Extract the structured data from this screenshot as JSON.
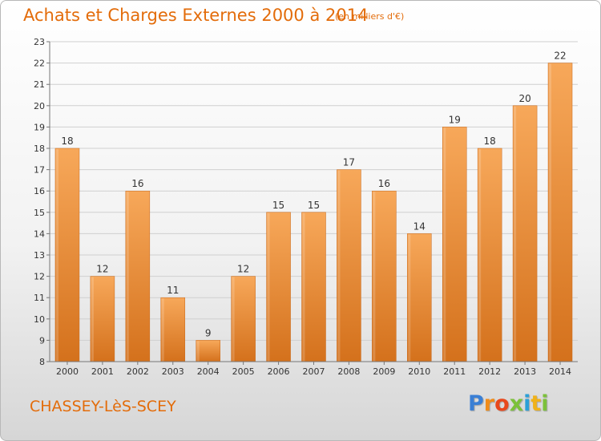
{
  "title": "Achats et Charges Externes 2000 à 2014",
  "subtitle": "(en milliers d'€)",
  "location": "CHASSEY-LèS-SCEY",
  "logo": {
    "letters": [
      "P",
      "r",
      "o",
      "x",
      "i",
      "t",
      "i"
    ],
    "colors": [
      "#3a7fd5",
      "#f08c1a",
      "#e8481c",
      "#7cc13a",
      "#2ca0d8",
      "#f0b21a",
      "#7cc13a"
    ]
  },
  "colors": {
    "accent": "#e36c0a",
    "bar_light": "#f7a85a",
    "bar_dark": "#d4711c",
    "grid": "#d0d0d0"
  },
  "chart_data": {
    "type": "bar",
    "categories": [
      "2000",
      "2001",
      "2002",
      "2003",
      "2004",
      "2005",
      "2006",
      "2007",
      "2008",
      "2009",
      "2010",
      "2011",
      "2012",
      "2013",
      "2014"
    ],
    "values": [
      18,
      12,
      16,
      11,
      9,
      12,
      15,
      15,
      17,
      16,
      14,
      19,
      18,
      20,
      22
    ],
    "ylim": [
      8,
      23
    ],
    "yticks": [
      8,
      9,
      10,
      11,
      12,
      13,
      14,
      15,
      16,
      17,
      18,
      19,
      20,
      21,
      22,
      23
    ],
    "grid": true,
    "data_labels": true
  }
}
